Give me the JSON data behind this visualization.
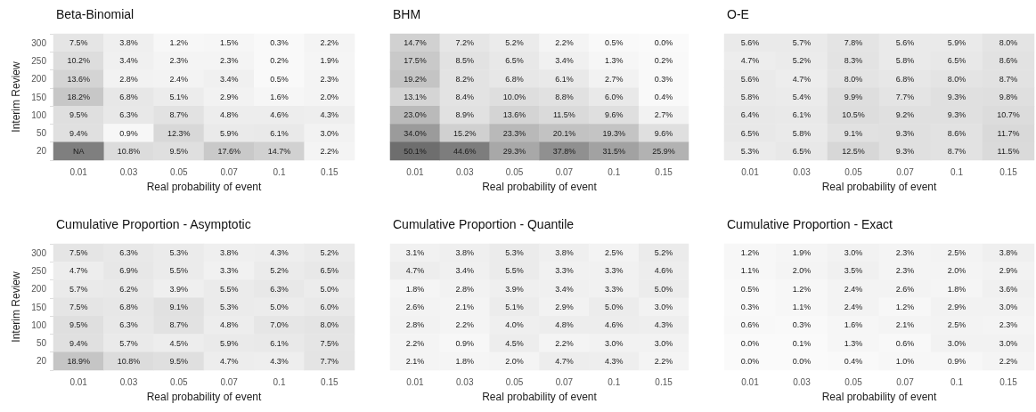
{
  "chart_data": [
    {
      "type": "heatmap",
      "title": "Beta-Binomial",
      "xlabel": "Real probability of event",
      "ylabel": "Interim Review",
      "categories": [
        "0.01",
        "0.03",
        "0.05",
        "0.07",
        "0.1",
        "0.15"
      ],
      "y_categories": [
        "300",
        "250",
        "200",
        "150",
        "100",
        "50",
        "20"
      ],
      "cells": [
        [
          7.5,
          3.8,
          1.2,
          1.5,
          0.3,
          2.2
        ],
        [
          10.2,
          3.4,
          2.3,
          2.3,
          0.2,
          1.9
        ],
        [
          13.6,
          2.8,
          2.4,
          3.4,
          0.5,
          2.3
        ],
        [
          18.2,
          6.8,
          5.1,
          2.9,
          1.6,
          2.0
        ],
        [
          9.5,
          6.3,
          8.7,
          4.8,
          4.6,
          4.3
        ],
        [
          9.4,
          0.9,
          12.3,
          5.9,
          6.1,
          3.0
        ],
        [
          null,
          10.8,
          9.5,
          17.6,
          14.7,
          2.2
        ]
      ],
      "cell_labels": [
        [
          "7.5%",
          "3.8%",
          "1.2%",
          "1.5%",
          "0.3%",
          "2.2%"
        ],
        [
          "10.2%",
          "3.4%",
          "2.3%",
          "2.3%",
          "0.2%",
          "1.9%"
        ],
        [
          "13.6%",
          "2.8%",
          "2.4%",
          "3.4%",
          "0.5%",
          "2.3%"
        ],
        [
          "18.2%",
          "6.8%",
          "5.1%",
          "2.9%",
          "1.6%",
          "2.0%"
        ],
        [
          "9.5%",
          "6.3%",
          "8.7%",
          "4.8%",
          "4.6%",
          "4.3%"
        ],
        [
          "9.4%",
          "0.9%",
          "12.3%",
          "5.9%",
          "6.1%",
          "3.0%"
        ],
        [
          "NA",
          "10.8%",
          "9.5%",
          "17.6%",
          "14.7%",
          "2.2%"
        ]
      ]
    },
    {
      "type": "heatmap",
      "title": "BHM",
      "xlabel": "Real probability of event",
      "tick_labels": "x",
      "categories": [
        "0.01",
        "0.03",
        "0.05",
        "0.07",
        "0.1",
        "0.15"
      ],
      "y_categories": [
        "300",
        "250",
        "200",
        "150",
        "100",
        "50",
        "20"
      ],
      "cells": [
        [
          14.7,
          7.2,
          5.2,
          2.2,
          0.5,
          0.0
        ],
        [
          17.5,
          8.5,
          6.5,
          3.4,
          1.3,
          0.2
        ],
        [
          19.2,
          8.2,
          6.8,
          6.1,
          2.7,
          0.3
        ],
        [
          13.1,
          8.4,
          10.0,
          8.8,
          6.0,
          0.4
        ],
        [
          23.0,
          8.9,
          13.6,
          11.5,
          9.6,
          2.7
        ],
        [
          34.0,
          15.2,
          23.3,
          20.1,
          19.3,
          9.6
        ],
        [
          50.1,
          44.6,
          29.3,
          37.8,
          31.5,
          25.9
        ]
      ],
      "cell_labels": [
        [
          "14.7%",
          "7.2%",
          "5.2%",
          "2.2%",
          "0.5%",
          "0.0%"
        ],
        [
          "17.5%",
          "8.5%",
          "6.5%",
          "3.4%",
          "1.3%",
          "0.2%"
        ],
        [
          "19.2%",
          "8.2%",
          "6.8%",
          "6.1%",
          "2.7%",
          "0.3%"
        ],
        [
          "13.1%",
          "8.4%",
          "10.0%",
          "8.8%",
          "6.0%",
          "0.4%"
        ],
        [
          "23.0%",
          "8.9%",
          "13.6%",
          "11.5%",
          "9.6%",
          "2.7%"
        ],
        [
          "34.0%",
          "15.2%",
          "23.3%",
          "20.1%",
          "19.3%",
          "9.6%"
        ],
        [
          "50.1%",
          "44.6%",
          "29.3%",
          "37.8%",
          "31.5%",
          "25.9%"
        ]
      ]
    },
    {
      "type": "heatmap",
      "title": "O-E",
      "xlabel": "Real probability of event",
      "tick_labels": "x",
      "categories": [
        "0.01",
        "0.03",
        "0.05",
        "0.07",
        "0.1",
        "0.15"
      ],
      "y_categories": [
        "300",
        "250",
        "200",
        "150",
        "100",
        "50",
        "20"
      ],
      "cells": [
        [
          5.6,
          5.7,
          7.8,
          5.6,
          5.9,
          8.0
        ],
        [
          4.7,
          5.2,
          8.3,
          5.8,
          6.5,
          8.6
        ],
        [
          5.6,
          4.7,
          8.0,
          6.8,
          8.0,
          8.7
        ],
        [
          5.8,
          5.4,
          9.9,
          7.7,
          9.3,
          9.8
        ],
        [
          6.4,
          6.1,
          10.5,
          9.2,
          9.3,
          10.7
        ],
        [
          6.5,
          5.8,
          9.1,
          9.3,
          8.6,
          11.7
        ],
        [
          5.3,
          6.5,
          12.5,
          9.3,
          8.7,
          11.5
        ]
      ],
      "cell_labels": [
        [
          "5.6%",
          "5.7%",
          "7.8%",
          "5.6%",
          "5.9%",
          "8.0%"
        ],
        [
          "4.7%",
          "5.2%",
          "8.3%",
          "5.8%",
          "6.5%",
          "8.6%"
        ],
        [
          "5.6%",
          "4.7%",
          "8.0%",
          "6.8%",
          "8.0%",
          "8.7%"
        ],
        [
          "5.8%",
          "5.4%",
          "9.9%",
          "7.7%",
          "9.3%",
          "9.8%"
        ],
        [
          "6.4%",
          "6.1%",
          "10.5%",
          "9.2%",
          "9.3%",
          "10.7%"
        ],
        [
          "6.5%",
          "5.8%",
          "9.1%",
          "9.3%",
          "8.6%",
          "11.7%"
        ],
        [
          "5.3%",
          "6.5%",
          "12.5%",
          "9.3%",
          "8.7%",
          "11.5%"
        ]
      ]
    },
    {
      "type": "heatmap",
      "title": "Cumulative Proportion - Asymptotic",
      "xlabel": "Real probability of event",
      "ylabel": "Interim Review",
      "categories": [
        "0.01",
        "0.03",
        "0.05",
        "0.07",
        "0.1",
        "0.15"
      ],
      "y_categories": [
        "300",
        "250",
        "200",
        "150",
        "100",
        "50",
        "20"
      ],
      "cells": [
        [
          7.5,
          6.3,
          5.3,
          3.8,
          4.3,
          5.2
        ],
        [
          4.7,
          6.9,
          5.5,
          3.3,
          5.2,
          6.5
        ],
        [
          5.7,
          6.2,
          3.9,
          5.5,
          6.3,
          5.0
        ],
        [
          7.5,
          6.8,
          9.1,
          5.3,
          5.0,
          6.0
        ],
        [
          9.5,
          6.3,
          8.7,
          4.8,
          7.0,
          8.0
        ],
        [
          9.4,
          5.7,
          4.5,
          5.9,
          6.1,
          7.5
        ],
        [
          18.9,
          10.8,
          9.5,
          4.7,
          4.3,
          7.7
        ]
      ],
      "cell_labels": [
        [
          "7.5%",
          "6.3%",
          "5.3%",
          "3.8%",
          "4.3%",
          "5.2%"
        ],
        [
          "4.7%",
          "6.9%",
          "5.5%",
          "3.3%",
          "5.2%",
          "6.5%"
        ],
        [
          "5.7%",
          "6.2%",
          "3.9%",
          "5.5%",
          "6.3%",
          "5.0%"
        ],
        [
          "7.5%",
          "6.8%",
          "9.1%",
          "5.3%",
          "5.0%",
          "6.0%"
        ],
        [
          "9.5%",
          "6.3%",
          "8.7%",
          "4.8%",
          "7.0%",
          "8.0%"
        ],
        [
          "9.4%",
          "5.7%",
          "4.5%",
          "5.9%",
          "6.1%",
          "7.5%"
        ],
        [
          "18.9%",
          "10.8%",
          "9.5%",
          "4.7%",
          "4.3%",
          "7.7%"
        ]
      ]
    },
    {
      "type": "heatmap",
      "title": "Cumulative Proportion - Quantile",
      "xlabel": "Real probability of event",
      "tick_labels": "x",
      "categories": [
        "0.01",
        "0.03",
        "0.05",
        "0.07",
        "0.1",
        "0.15"
      ],
      "y_categories": [
        "300",
        "250",
        "200",
        "150",
        "100",
        "50",
        "20"
      ],
      "cells": [
        [
          3.1,
          3.8,
          5.3,
          3.8,
          2.5,
          5.2
        ],
        [
          4.7,
          3.4,
          5.5,
          3.3,
          3.3,
          4.6
        ],
        [
          1.8,
          2.8,
          3.9,
          3.4,
          3.3,
          5.0
        ],
        [
          2.6,
          2.1,
          5.1,
          2.9,
          5.0,
          3.0
        ],
        [
          2.8,
          2.2,
          4.0,
          4.8,
          4.6,
          4.3
        ],
        [
          2.2,
          0.9,
          4.5,
          2.2,
          3.0,
          3.0
        ],
        [
          2.1,
          1.8,
          2.0,
          4.7,
          4.3,
          2.2
        ]
      ],
      "cell_labels": [
        [
          "3.1%",
          "3.8%",
          "5.3%",
          "3.8%",
          "2.5%",
          "5.2%"
        ],
        [
          "4.7%",
          "3.4%",
          "5.5%",
          "3.3%",
          "3.3%",
          "4.6%"
        ],
        [
          "1.8%",
          "2.8%",
          "3.9%",
          "3.4%",
          "3.3%",
          "5.0%"
        ],
        [
          "2.6%",
          "2.1%",
          "5.1%",
          "2.9%",
          "5.0%",
          "3.0%"
        ],
        [
          "2.8%",
          "2.2%",
          "4.0%",
          "4.8%",
          "4.6%",
          "4.3%"
        ],
        [
          "2.2%",
          "0.9%",
          "4.5%",
          "2.2%",
          "3.0%",
          "3.0%"
        ],
        [
          "2.1%",
          "1.8%",
          "2.0%",
          "4.7%",
          "4.3%",
          "2.2%"
        ]
      ]
    },
    {
      "type": "heatmap",
      "title": "Cumulative Proportion - Exact",
      "xlabel": "Real probability of event",
      "tick_labels": "x",
      "categories": [
        "0.01",
        "0.03",
        "0.05",
        "0.07",
        "0.1",
        "0.15"
      ],
      "y_categories": [
        "300",
        "250",
        "200",
        "150",
        "100",
        "50",
        "20"
      ],
      "cells": [
        [
          1.2,
          1.9,
          3.0,
          2.3,
          2.5,
          3.8
        ],
        [
          1.1,
          2.0,
          3.5,
          2.3,
          2.0,
          2.9
        ],
        [
          0.5,
          1.2,
          2.4,
          2.6,
          1.8,
          3.6
        ],
        [
          0.3,
          1.1,
          2.4,
          1.2,
          2.9,
          3.0
        ],
        [
          0.6,
          0.3,
          1.6,
          2.1,
          2.5,
          2.3
        ],
        [
          0.0,
          0.1,
          1.3,
          0.6,
          3.0,
          3.0
        ],
        [
          0.0,
          0.0,
          0.4,
          1.0,
          0.9,
          2.2
        ]
      ],
      "cell_labels": [
        [
          "1.2%",
          "1.9%",
          "3.0%",
          "2.3%",
          "2.5%",
          "3.8%"
        ],
        [
          "1.1%",
          "2.0%",
          "3.5%",
          "2.3%",
          "2.0%",
          "2.9%"
        ],
        [
          "0.5%",
          "1.2%",
          "2.4%",
          "2.6%",
          "1.8%",
          "3.6%"
        ],
        [
          "0.3%",
          "1.1%",
          "2.4%",
          "1.2%",
          "2.9%",
          "3.0%"
        ],
        [
          "0.6%",
          "0.3%",
          "1.6%",
          "2.1%",
          "2.5%",
          "2.3%"
        ],
        [
          "0.0%",
          "0.1%",
          "1.3%",
          "0.6%",
          "3.0%",
          "3.0%"
        ],
        [
          "0.0%",
          "0.0%",
          "0.4%",
          "1.0%",
          "0.9%",
          "2.2%"
        ]
      ]
    }
  ]
}
